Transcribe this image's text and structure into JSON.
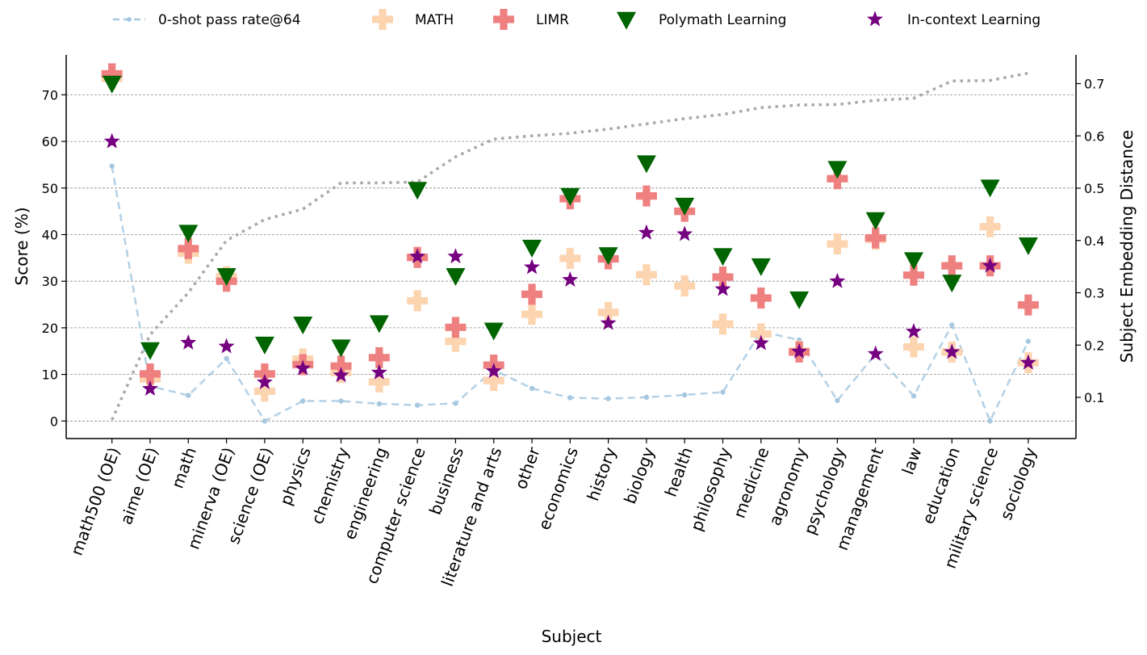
{
  "chart_data": {
    "type": "scatter",
    "title": "",
    "xlabel": "Subject",
    "ylabel": "Score (%)",
    "ylabel_right": "Subject Embedding Distance",
    "ylim": [
      -4,
      78.5
    ],
    "ylim_right": [
      0.03,
      0.765
    ],
    "yticks": [
      0,
      10,
      20,
      30,
      40,
      50,
      60,
      70
    ],
    "yticks_right": [
      0.1,
      0.2,
      0.3,
      0.4,
      0.5,
      0.6,
      0.7
    ],
    "grid": "horizontal dashed",
    "legend_position": "top-center",
    "categories": [
      "math500 (OE)",
      "aime (OE)",
      "math",
      "minerva (OE)",
      "science (OE)",
      "physics",
      "chemistry",
      "engineering",
      "computer science",
      "business",
      "literature and arts",
      "other",
      "economics",
      "history",
      "biology",
      "health",
      "philosophy",
      "medicine",
      "agronomy",
      "psychology",
      "management",
      "law",
      "education",
      "military science",
      "sociology"
    ],
    "series": [
      {
        "name": "0-shot pass rate@64",
        "type": "line",
        "style": "dashed",
        "color": "#a6c8e0",
        "axis": "left",
        "values": [
          54.7,
          7.5,
          5.5,
          13.4,
          0.0,
          4.3,
          4.3,
          3.7,
          3.4,
          3.8,
          11.0,
          7.0,
          5.0,
          4.8,
          5.1,
          5.6,
          6.2,
          19.2,
          17.4,
          4.4,
          14.4,
          5.4,
          20.6,
          0.0,
          17.1
        ]
      },
      {
        "name": "MATH",
        "type": "scatter",
        "marker": "plus",
        "color": "#fdd4b0",
        "axis": "left",
        "values": [
          73.5,
          9.0,
          36.0,
          31.0,
          6.4,
          13.3,
          10.4,
          8.4,
          25.8,
          17.1,
          8.7,
          22.9,
          34.9,
          23.3,
          31.4,
          29.0,
          20.8,
          18.7,
          15.0,
          38.0,
          39.0,
          15.9,
          14.8,
          41.7,
          12.5
        ]
      },
      {
        "name": "LIMR",
        "type": "scatter",
        "marker": "plus",
        "color": "#ef8080",
        "axis": "left",
        "values": [
          74.5,
          10.1,
          37.0,
          30.0,
          10.1,
          12.1,
          11.8,
          13.6,
          35.1,
          20.1,
          12.0,
          27.2,
          47.7,
          34.8,
          48.3,
          45.0,
          30.9,
          26.4,
          14.8,
          52.0,
          39.3,
          31.3,
          33.3,
          33.3,
          24.9
        ]
      },
      {
        "name": "Polymath Learning",
        "type": "scatter",
        "marker": "triangle-down",
        "color": "#006400",
        "axis": "left",
        "values": [
          72.5,
          15.3,
          40.5,
          31.2,
          16.5,
          20.8,
          15.9,
          21.1,
          49.7,
          31.2,
          19.5,
          37.3,
          48.4,
          35.7,
          55.4,
          46.3,
          35.5,
          33.3,
          26.2,
          54.2,
          43.2,
          34.6,
          29.8,
          50.2,
          37.8
        ]
      },
      {
        "name": "In-context Learning",
        "type": "scatter",
        "marker": "star",
        "color": "#750080",
        "axis": "left",
        "values": [
          60.0,
          6.9,
          16.8,
          16.0,
          8.3,
          11.3,
          9.8,
          10.4,
          35.3,
          35.3,
          10.7,
          33.0,
          30.3,
          21.0,
          40.4,
          40.1,
          28.3,
          16.7,
          14.9,
          30.0,
          14.4,
          19.2,
          14.8,
          33.3,
          12.5
        ]
      },
      {
        "name": "Subject Embedding Distance",
        "type": "line",
        "style": "dotted",
        "color": "#a9a9a9",
        "axis": "right",
        "in_legend": false,
        "values": [
          0.057,
          0.22,
          0.3,
          0.4,
          0.44,
          0.46,
          0.51,
          0.51,
          0.512,
          0.56,
          0.594,
          0.6,
          0.605,
          0.613,
          0.623,
          0.633,
          0.641,
          0.654,
          0.659,
          0.66,
          0.668,
          0.672,
          0.705,
          0.706,
          0.72
        ]
      }
    ],
    "legend": [
      {
        "label": "0-shot pass rate@64",
        "marker": "dashed-line-dot",
        "color": "#a6c8e0"
      },
      {
        "label": "MATH",
        "marker": "plus",
        "color": "#fdd4b0"
      },
      {
        "label": "LIMR",
        "marker": "plus",
        "color": "#ef8080"
      },
      {
        "label": "Polymath Learning",
        "marker": "triangle-down",
        "color": "#006400"
      },
      {
        "label": "In-context Learning",
        "marker": "star",
        "color": "#750080"
      }
    ]
  }
}
